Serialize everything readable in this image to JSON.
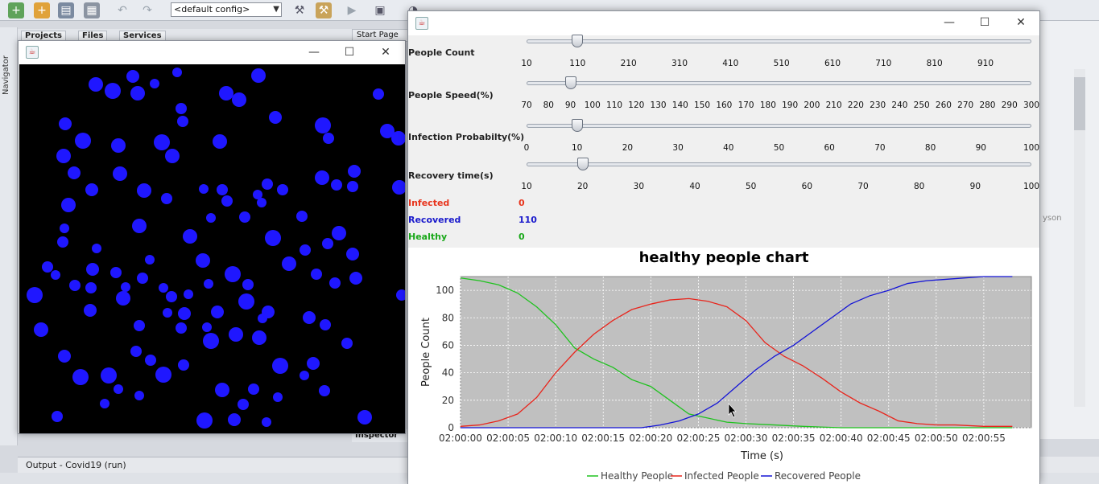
{
  "ide": {
    "config": "<default config>",
    "tabs": [
      "Projects",
      "Files",
      "Services"
    ],
    "start_tab": "Start Page",
    "navigator": "Navigator",
    "inspector": "Inspector",
    "output": "Output - Covid19 (run)",
    "right_text": "yson"
  },
  "sim_window": {
    "dots": [
      [
        118,
        105,
        9
      ],
      [
        139,
        113,
        10
      ],
      [
        164,
        95,
        8
      ],
      [
        170,
        116,
        9
      ],
      [
        191,
        104,
        6
      ],
      [
        219,
        90,
        6
      ],
      [
        280,
        116,
        9
      ],
      [
        296,
        124,
        9
      ],
      [
        320,
        94,
        9
      ],
      [
        469,
        117,
        7
      ],
      [
        80,
        154,
        8
      ],
      [
        102,
        175,
        10
      ],
      [
        146,
        181,
        9
      ],
      [
        200,
        177,
        10
      ],
      [
        213,
        194,
        9
      ],
      [
        224,
        135,
        7
      ],
      [
        226,
        151,
        7
      ],
      [
        272,
        176,
        9
      ],
      [
        341,
        146,
        8
      ],
      [
        400,
        156,
        10
      ],
      [
        407,
        172,
        7
      ],
      [
        480,
        163,
        9
      ],
      [
        494,
        172,
        9
      ],
      [
        78,
        194,
        9
      ],
      [
        91,
        215,
        8
      ],
      [
        148,
        216,
        9
      ],
      [
        178,
        237,
        9
      ],
      [
        113,
        236,
        8
      ],
      [
        206,
        247,
        7
      ],
      [
        252,
        235,
        6
      ],
      [
        275,
        236,
        7
      ],
      [
        319,
        242,
        6
      ],
      [
        331,
        229,
        7
      ],
      [
        350,
        236,
        7
      ],
      [
        399,
        221,
        9
      ],
      [
        417,
        230,
        7
      ],
      [
        437,
        232,
        7
      ],
      [
        439,
        213,
        8
      ],
      [
        495,
        233,
        9
      ],
      [
        84,
        255,
        9
      ],
      [
        172,
        281,
        9
      ],
      [
        261,
        271,
        6
      ],
      [
        281,
        250,
        7
      ],
      [
        303,
        270,
        7
      ],
      [
        324,
        252,
        6
      ],
      [
        374,
        269,
        7
      ],
      [
        79,
        284,
        6
      ],
      [
        119,
        309,
        6
      ],
      [
        77,
        301,
        7
      ],
      [
        235,
        294,
        9
      ],
      [
        338,
        296,
        10
      ],
      [
        406,
        303,
        7
      ],
      [
        420,
        290,
        9
      ],
      [
        437,
        316,
        8
      ],
      [
        58,
        332,
        7
      ],
      [
        68,
        342,
        6
      ],
      [
        114,
        335,
        8
      ],
      [
        185,
        323,
        6
      ],
      [
        143,
        339,
        7
      ],
      [
        155,
        357,
        6
      ],
      [
        251,
        324,
        9
      ],
      [
        288,
        341,
        10
      ],
      [
        358,
        328,
        9
      ],
      [
        378,
        311,
        7
      ],
      [
        392,
        341,
        7
      ],
      [
        92,
        355,
        7
      ],
      [
        112,
        358,
        7
      ],
      [
        176,
        346,
        7
      ],
      [
        202,
        358,
        6
      ],
      [
        233,
        366,
        6
      ],
      [
        258,
        353,
        6
      ],
      [
        307,
        354,
        7
      ],
      [
        415,
        352,
        7
      ],
      [
        441,
        346,
        8
      ],
      [
        42,
        367,
        10
      ],
      [
        152,
        371,
        9
      ],
      [
        212,
        369,
        7
      ],
      [
        305,
        375,
        10
      ],
      [
        498,
        367,
        7
      ],
      [
        111,
        386,
        8
      ],
      [
        207,
        389,
        6
      ],
      [
        228,
        390,
        8
      ],
      [
        269,
        388,
        8
      ],
      [
        383,
        395,
        8
      ],
      [
        50,
        410,
        9
      ],
      [
        172,
        405,
        7
      ],
      [
        224,
        408,
        7
      ],
      [
        256,
        407,
        6
      ],
      [
        325,
        396,
        6
      ],
      [
        332,
        388,
        8
      ],
      [
        403,
        404,
        7
      ],
      [
        261,
        424,
        10
      ],
      [
        292,
        416,
        9
      ],
      [
        321,
        420,
        9
      ],
      [
        430,
        427,
        7
      ],
      [
        79,
        443,
        8
      ],
      [
        168,
        437,
        7
      ],
      [
        186,
        448,
        7
      ],
      [
        227,
        454,
        7
      ],
      [
        347,
        455,
        10
      ],
      [
        388,
        452,
        8
      ],
      [
        99,
        469,
        10
      ],
      [
        134,
        467,
        10
      ],
      [
        202,
        466,
        10
      ],
      [
        377,
        467,
        6
      ],
      [
        402,
        486,
        7
      ],
      [
        146,
        484,
        6
      ],
      [
        275,
        485,
        9
      ],
      [
        314,
        484,
        7
      ],
      [
        344,
        494,
        6
      ],
      [
        129,
        502,
        6
      ],
      [
        172,
        492,
        6
      ],
      [
        301,
        503,
        7
      ],
      [
        70,
        518,
        7
      ],
      [
        253,
        523,
        10
      ],
      [
        290,
        522,
        8
      ],
      [
        330,
        525,
        6
      ],
      [
        452,
        519,
        9
      ]
    ]
  },
  "controls": {
    "sliders": [
      {
        "label": "People Count",
        "ticks": [
          "10",
          "110",
          "210",
          "310",
          "410",
          "510",
          "610",
          "710",
          "810",
          "910"
        ],
        "value_index": 1
      },
      {
        "label": "People Speed(%)",
        "ticks": [
          "70",
          "80",
          "90",
          "100",
          "110",
          "120",
          "130",
          "140",
          "150",
          "160",
          "170",
          "180",
          "190",
          "200",
          "210",
          "220",
          "230",
          "240",
          "250",
          "260",
          "270",
          "280",
          "290",
          "300"
        ],
        "value_index": 2
      },
      {
        "label": "Infection Probabilty(%)",
        "ticks": [
          "0",
          "10",
          "20",
          "30",
          "40",
          "50",
          "60",
          "70",
          "80",
          "90",
          "100"
        ],
        "value_index": 1
      },
      {
        "label": "Recovery time(s)",
        "ticks": [
          "10",
          "20",
          "30",
          "40",
          "50",
          "60",
          "70",
          "80",
          "90",
          "100"
        ],
        "value_index": 1
      }
    ],
    "stats": [
      {
        "label": "Infected",
        "value": "0",
        "color": "#e8341c"
      },
      {
        "label": "Recovered",
        "value": "110",
        "color": "#1a1acc"
      },
      {
        "label": "Healthy",
        "value": "0",
        "color": "#1aa81a"
      }
    ]
  },
  "chart_data": {
    "type": "line",
    "title": "healthy people chart",
    "xlabel": "Time (s)",
    "ylabel": "People Count",
    "xticks": [
      "02:00:00",
      "02:00:05",
      "02:00:10",
      "02:00:15",
      "02:00:20",
      "02:00:25",
      "02:00:30",
      "02:00:35",
      "02:00:40",
      "02:00:45",
      "02:00:50",
      "02:00:55"
    ],
    "ylim": [
      0,
      110
    ],
    "yticks": [
      0,
      20,
      40,
      60,
      80,
      100
    ],
    "xlim": [
      0,
      60
    ],
    "grid": true,
    "legend": "bottom",
    "series": [
      {
        "name": "Healthy People",
        "color": "#1fc21f",
        "x": [
          0,
          2,
          4,
          6,
          8,
          10,
          12,
          14,
          16,
          18,
          20,
          22,
          24,
          26,
          28,
          30,
          33,
          36,
          40,
          45,
          50,
          55,
          58
        ],
        "y": [
          109,
          107,
          104,
          98,
          88,
          75,
          58,
          50,
          44,
          35,
          30,
          20,
          10,
          7,
          4,
          3,
          2,
          1,
          0,
          0,
          0,
          0,
          0
        ]
      },
      {
        "name": "Infected People",
        "color": "#e8251c",
        "x": [
          0,
          2,
          4,
          6,
          8,
          10,
          12,
          14,
          16,
          18,
          20,
          22,
          24,
          26,
          28,
          30,
          32,
          34,
          36,
          38,
          40,
          42,
          44,
          46,
          48,
          50,
          52,
          55,
          58
        ],
        "y": [
          1,
          2,
          5,
          10,
          22,
          40,
          55,
          68,
          78,
          86,
          90,
          93,
          94,
          92,
          88,
          78,
          62,
          52,
          45,
          36,
          26,
          18,
          12,
          5,
          3,
          2,
          2,
          1,
          1
        ]
      },
      {
        "name": "Recovered People",
        "color": "#1414d6",
        "x": [
          0,
          10,
          16,
          19,
          21,
          23,
          25,
          27,
          29,
          31,
          33,
          35,
          37,
          39,
          41,
          43,
          45,
          47,
          49,
          51,
          53,
          55,
          58
        ],
        "y": [
          0,
          0,
          0,
          0,
          2,
          5,
          10,
          18,
          30,
          42,
          52,
          60,
          70,
          80,
          90,
          96,
          100,
          105,
          107,
          108,
          109,
          110,
          110
        ]
      }
    ]
  }
}
